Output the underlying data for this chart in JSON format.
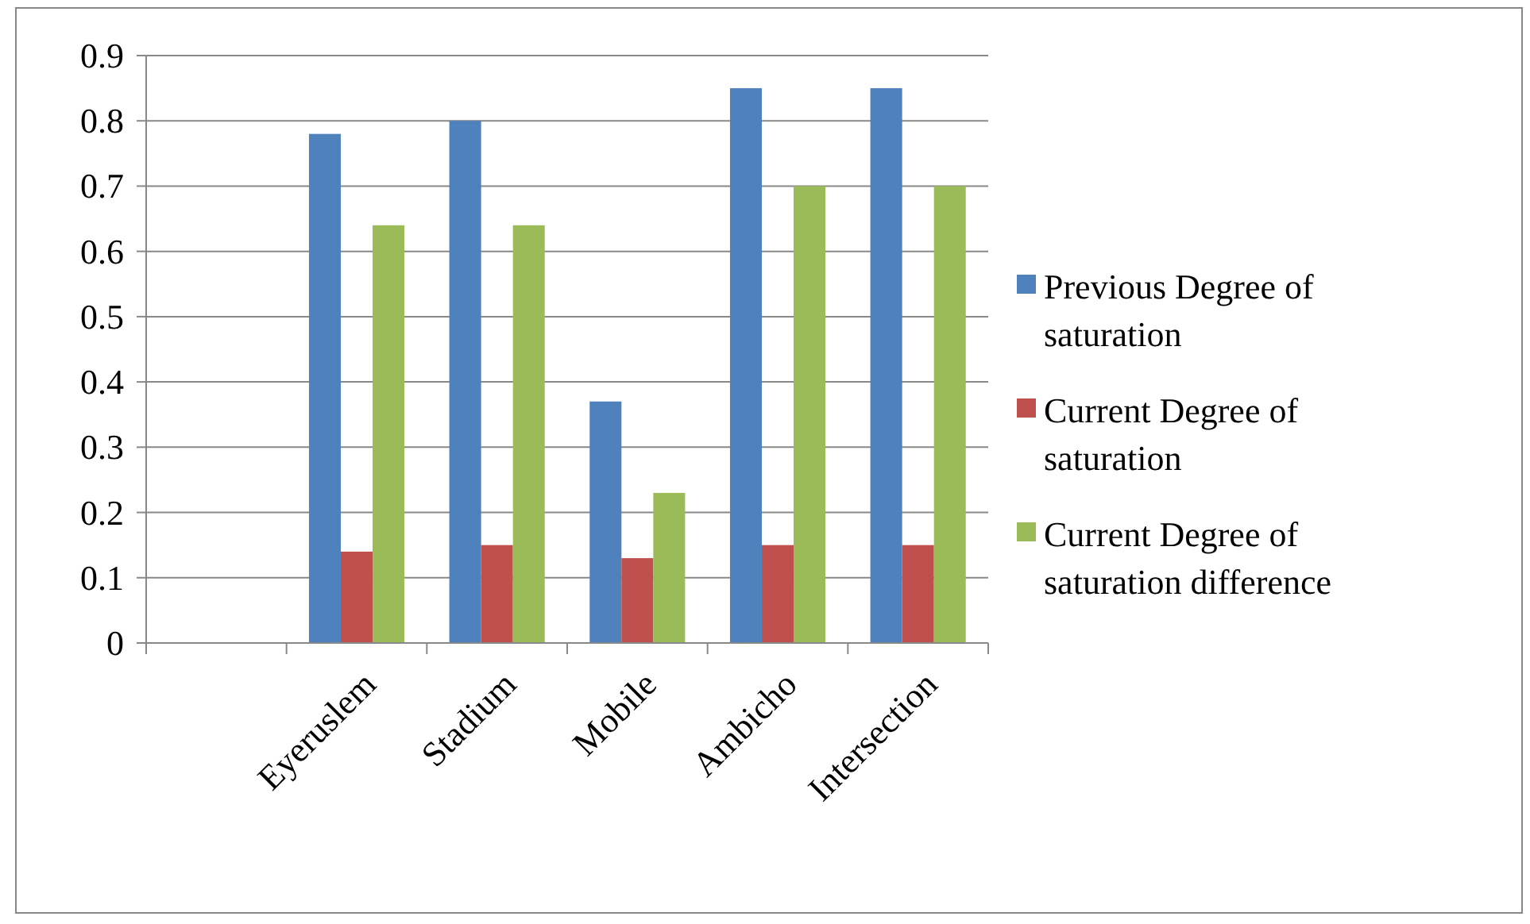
{
  "chart_data": {
    "type": "bar",
    "categories": [
      null,
      "Eyeruslem",
      "Stadium",
      "Mobile",
      "Ambicho",
      "Intersection"
    ],
    "series": [
      {
        "name": "Previous Degree of saturation",
        "color": "#4f81bd",
        "values": [
          null,
          0.78,
          0.8,
          0.37,
          0.85,
          0.85
        ]
      },
      {
        "name": "Current Degree of saturation",
        "color": "#c0504d",
        "values": [
          null,
          0.14,
          0.15,
          0.13,
          0.15,
          0.15
        ]
      },
      {
        "name": "Current Degree of saturation difference",
        "color": "#9bbb59",
        "values": [
          null,
          0.64,
          0.64,
          0.23,
          0.7,
          0.7
        ]
      }
    ],
    "ylim": [
      0,
      0.9
    ],
    "yticks": [
      0,
      0.1,
      0.2,
      0.3,
      0.4,
      0.5,
      0.6,
      0.7,
      0.8,
      0.9
    ],
    "grid": "y",
    "legend": "right"
  }
}
